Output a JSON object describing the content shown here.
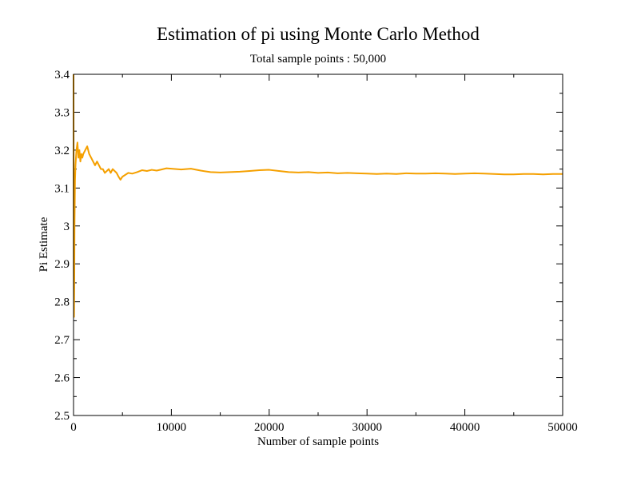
{
  "chart_data": {
    "type": "line",
    "title": "Estimation of pi using Monte Carlo Method",
    "subtitle": "Total sample points : 50,000",
    "xlabel": "Number of sample points",
    "ylabel": "Pi Estimate",
    "xlim": [
      0,
      50000
    ],
    "ylim": [
      2.5,
      3.4
    ],
    "x_ticks": [
      0,
      10000,
      20000,
      30000,
      40000,
      50000
    ],
    "x_tick_labels": [
      "0",
      "10000",
      "20000",
      "30000",
      "40000",
      "50000"
    ],
    "y_ticks": [
      2.5,
      2.6,
      2.7,
      2.8,
      2.9,
      3.0,
      3.1,
      3.2,
      3.3,
      3.4
    ],
    "y_tick_labels": [
      "2.5",
      "2.6",
      "2.7",
      "2.8",
      "2.9",
      "3",
      "3.1",
      "3.2",
      "3.3",
      "3.4"
    ],
    "grid": false,
    "legend": "none",
    "line_color": "#f5a000",
    "series": [
      {
        "name": "Pi Estimate",
        "x": [
          1,
          20,
          50,
          80,
          100,
          150,
          200,
          300,
          400,
          500,
          600,
          700,
          800,
          900,
          1000,
          1200,
          1400,
          1600,
          1800,
          2000,
          2200,
          2400,
          2600,
          2800,
          3000,
          3200,
          3400,
          3600,
          3800,
          4000,
          4200,
          4400,
          4600,
          4800,
          5000,
          5300,
          5600,
          6000,
          6500,
          7000,
          7500,
          8000,
          8500,
          9000,
          9500,
          10000,
          11000,
          12000,
          13000,
          14000,
          15000,
          16000,
          17000,
          18000,
          19000,
          20000,
          21000,
          22000,
          23000,
          24000,
          25000,
          26000,
          27000,
          28000,
          29000,
          30000,
          31000,
          32000,
          33000,
          34000,
          35000,
          36000,
          37000,
          38000,
          39000,
          40000,
          41000,
          42000,
          43000,
          44000,
          45000,
          46000,
          47000,
          48000,
          49000,
          50000
        ],
        "values": [
          3.4,
          2.9,
          2.76,
          2.86,
          3.0,
          3.12,
          3.16,
          3.2,
          3.22,
          3.18,
          3.2,
          3.17,
          3.19,
          3.18,
          3.19,
          3.2,
          3.21,
          3.19,
          3.18,
          3.17,
          3.16,
          3.17,
          3.16,
          3.15,
          3.15,
          3.14,
          3.145,
          3.15,
          3.14,
          3.15,
          3.145,
          3.14,
          3.13,
          3.122,
          3.13,
          3.135,
          3.14,
          3.138,
          3.142,
          3.147,
          3.145,
          3.148,
          3.146,
          3.149,
          3.152,
          3.151,
          3.149,
          3.151,
          3.146,
          3.142,
          3.141,
          3.142,
          3.143,
          3.145,
          3.147,
          3.148,
          3.145,
          3.142,
          3.141,
          3.142,
          3.14,
          3.141,
          3.139,
          3.14,
          3.139,
          3.138,
          3.137,
          3.138,
          3.137,
          3.139,
          3.138,
          3.138,
          3.139,
          3.138,
          3.137,
          3.138,
          3.139,
          3.138,
          3.137,
          3.136,
          3.136,
          3.137,
          3.137,
          3.136,
          3.137,
          3.137
        ]
      }
    ]
  }
}
